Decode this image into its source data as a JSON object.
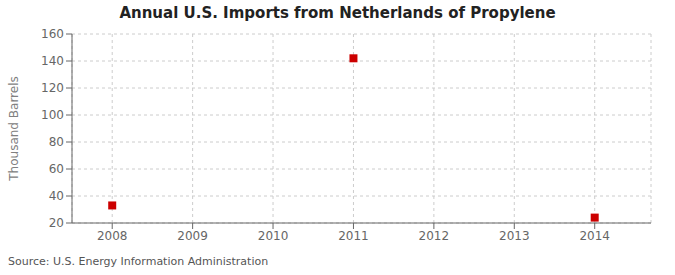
{
  "chart_data": {
    "type": "scatter",
    "title": "Annual U.S. Imports from Netherlands of Propylene",
    "ylabel": "Thousand Barrels",
    "annotation": "Source: U.S. Energy Information Administration",
    "x": [
      2008,
      2011,
      2014
    ],
    "values": [
      33,
      142,
      24
    ],
    "color": "#cc0000",
    "marker": "square",
    "xlim": [
      2007.5,
      2014.7
    ],
    "xticks": [
      2008,
      2009,
      2010,
      2011,
      2012,
      2013,
      2014
    ],
    "ylim": [
      20,
      160
    ],
    "yticks": [
      20,
      40,
      60,
      80,
      100,
      120,
      140,
      160
    ],
    "grid": true
  }
}
